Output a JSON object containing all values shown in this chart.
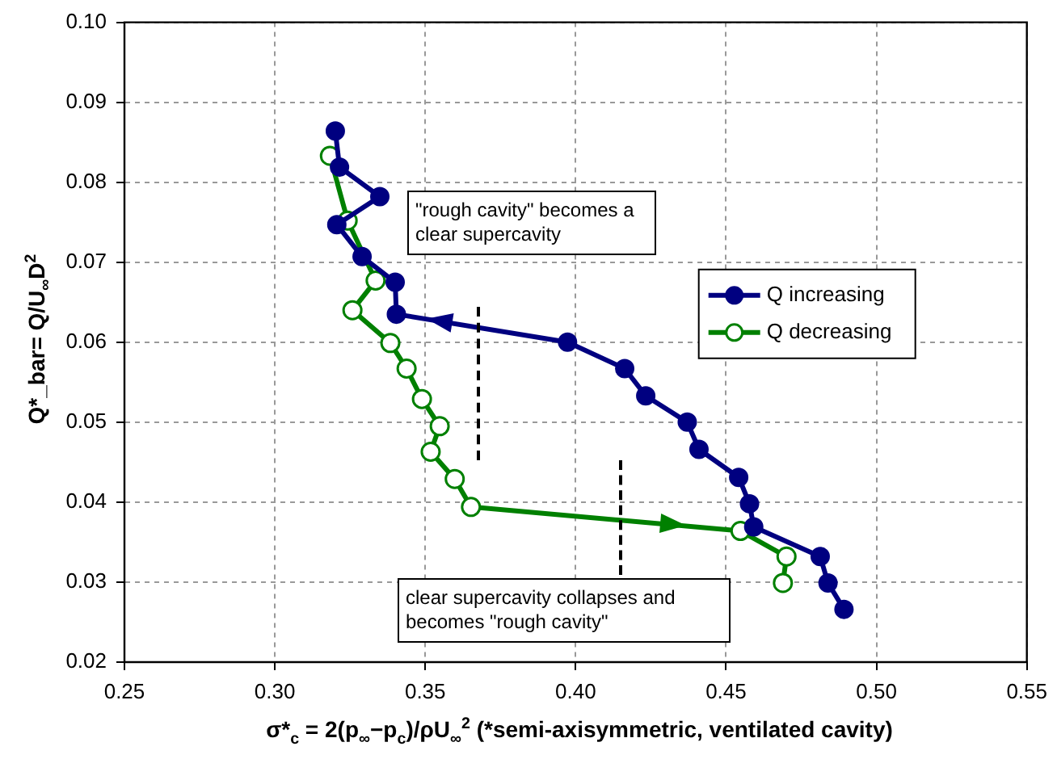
{
  "chart_data": {
    "type": "line",
    "xlabel": "σ*$_{c}$ = 2(p$_{∞}$−p$_{c}$)/ρU$_{∞}$$^{2}$  (*semi-axisymmetric, ventilated cavity)",
    "ylabel": "Q*_bar= Q/U$_{∞}$D$^{2}$",
    "xlim": [
      0.25,
      0.55
    ],
    "xticks": [
      {
        "value": 0.25,
        "label": "0.25"
      },
      {
        "value": 0.3,
        "label": "0.30"
      },
      {
        "value": 0.35,
        "label": "0.35"
      },
      {
        "value": 0.4,
        "label": "0.40"
      },
      {
        "value": 0.45,
        "label": "0.45"
      },
      {
        "value": 0.5,
        "label": "0.50"
      },
      {
        "value": 0.55,
        "label": "0.55"
      }
    ],
    "ylim": [
      0.02,
      0.1
    ],
    "yticks": [
      {
        "value": 0.02,
        "label": "0.02"
      },
      {
        "value": 0.03,
        "label": "0.03"
      },
      {
        "value": 0.04,
        "label": "0.04"
      },
      {
        "value": 0.05,
        "label": "0.05"
      },
      {
        "value": 0.06,
        "label": "0.06"
      },
      {
        "value": 0.07,
        "label": "0.07"
      },
      {
        "value": 0.08,
        "label": "0.08"
      },
      {
        "value": 0.09,
        "label": "0.09"
      },
      {
        "value": 0.1,
        "label": "0.10"
      }
    ],
    "grid": true,
    "legend": "right",
    "marker": "circle",
    "line_style": "solid",
    "series": [
      {
        "name": "Q increasing",
        "color": "#000080",
        "x": [
          0.4892,
          0.4839,
          0.4813,
          0.4592,
          0.4578,
          0.4542,
          0.441,
          0.4371,
          0.4233,
          0.4163,
          0.3973,
          0.3404,
          0.34,
          0.329,
          0.3206,
          0.3349,
          0.3215,
          0.3201
        ],
        "values": [
          0.0266,
          0.0299,
          0.0332,
          0.0369,
          0.0398,
          0.0431,
          0.0466,
          0.05,
          0.0533,
          0.0567,
          0.06,
          0.0635,
          0.0675,
          0.0707,
          0.0747,
          0.0782,
          0.0819,
          0.0864
        ]
      },
      {
        "name": "Q decreasing",
        "color": "#008000",
        "x": [
          0.3183,
          0.3242,
          0.3335,
          0.3258,
          0.3384,
          0.3438,
          0.3489,
          0.3548,
          0.3518,
          0.3598,
          0.3652,
          0.4548,
          0.4701,
          0.4689
        ],
        "values": [
          0.0833,
          0.0752,
          0.0677,
          0.064,
          0.0599,
          0.0567,
          0.0529,
          0.0495,
          0.0463,
          0.0429,
          0.0394,
          0.0364,
          0.0332,
          0.0299
        ]
      }
    ],
    "annotations": [
      "\"rough cavity\" becomes a clear supercavity",
      "clear supercavity collapses and becomes \"rough cavity\""
    ]
  }
}
